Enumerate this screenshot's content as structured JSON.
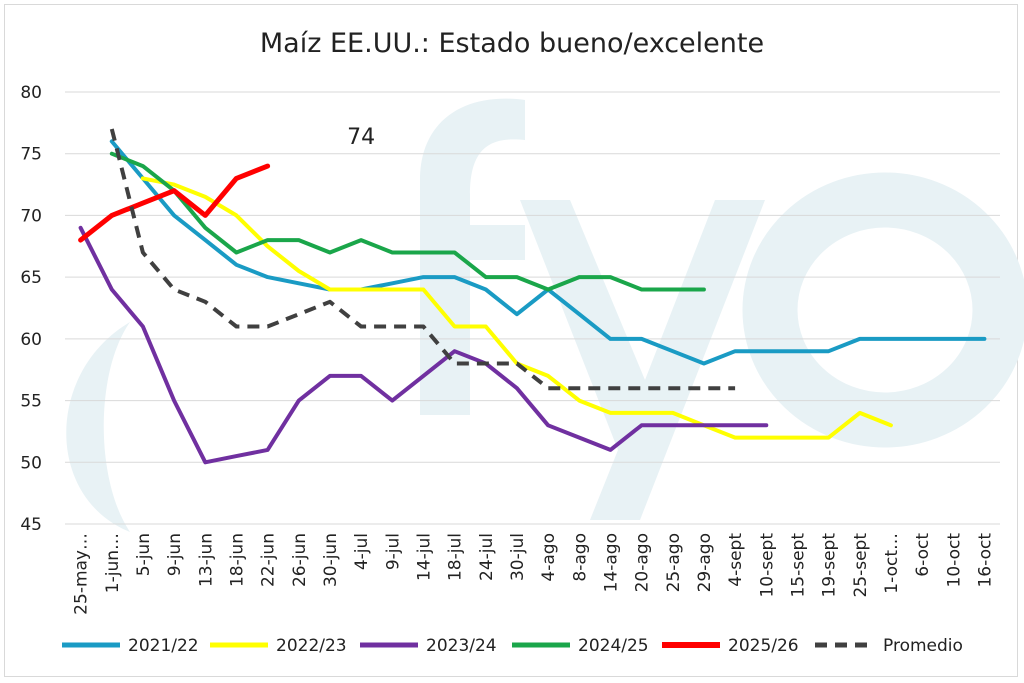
{
  "chart_data": {
    "type": "line",
    "title": "Maíz EE.UU.: Estado bueno/excelente",
    "xlabel": "",
    "ylabel": "",
    "ylim": [
      45,
      80
    ],
    "yticks": [
      45,
      50,
      55,
      60,
      65,
      70,
      75,
      80
    ],
    "grid": true,
    "legend_position": "bottom",
    "watermark": "fyo",
    "categories": [
      "25-may…",
      "1-jun…",
      "5-jun",
      "9-jun",
      "13-jun",
      "18-jun",
      "22-jun",
      "26-jun",
      "30-jun",
      "4-jul",
      "9-jul",
      "14-jul",
      "18-jul",
      "24-jul",
      "30-jul",
      "4-ago",
      "8-ago",
      "14-ago",
      "20-ago",
      "25-ago",
      "29-ago",
      "4-sept",
      "10-sept",
      "15-sept",
      "19-sept",
      "25-sept",
      "1-oct…",
      "6-oct",
      "10-oct",
      "16-oct"
    ],
    "series": [
      {
        "name": "2021/22",
        "color": "#1a9bc4",
        "dash": false,
        "values": [
          null,
          76,
          73,
          70,
          68,
          66,
          65,
          64.5,
          64,
          64,
          64.5,
          65,
          65,
          64,
          62,
          64,
          62,
          60,
          60,
          59,
          58,
          59,
          59,
          59,
          59,
          60,
          60,
          60,
          60,
          60
        ]
      },
      {
        "name": "2022/23",
        "color": "#ffff00",
        "dash": false,
        "values": [
          null,
          null,
          73,
          72.5,
          71.5,
          70,
          67.5,
          65.5,
          64,
          64,
          64,
          64,
          61,
          61,
          58,
          57,
          55,
          54,
          54,
          54,
          53,
          52,
          52,
          52,
          52,
          54,
          53,
          null,
          null,
          null
        ]
      },
      {
        "name": "2023/24",
        "color": "#7030a0",
        "dash": false,
        "values": [
          69,
          64,
          61,
          55,
          50,
          50.5,
          51,
          55,
          57,
          57,
          55,
          57,
          59,
          58,
          56,
          53,
          52,
          51,
          53,
          53,
          53,
          53,
          53,
          null,
          null,
          null,
          null,
          null,
          null,
          null
        ]
      },
      {
        "name": "2024/25",
        "color": "#1aa64a",
        "dash": false,
        "values": [
          null,
          75,
          74,
          72,
          69,
          67,
          68,
          68,
          67,
          68,
          67,
          67,
          67,
          65,
          65,
          64,
          65,
          65,
          64,
          64,
          64,
          null,
          null,
          null,
          null,
          null,
          null,
          null,
          null,
          null
        ]
      },
      {
        "name": "2025/26",
        "color": "#ff0000",
        "dash": false,
        "values": [
          68,
          70,
          71,
          72,
          70,
          73,
          74,
          null,
          null,
          null,
          null,
          null,
          null,
          null,
          null,
          null,
          null,
          null,
          null,
          null,
          null,
          null,
          null,
          null,
          null,
          null,
          null,
          null,
          null,
          null
        ]
      },
      {
        "name": "Promedio",
        "color": "#404040",
        "dash": true,
        "values": [
          null,
          77,
          67,
          64,
          63,
          61,
          61,
          62,
          63,
          61,
          61,
          61,
          58,
          58,
          58,
          56,
          56,
          56,
          56,
          56,
          56,
          56,
          null,
          null,
          null,
          null,
          null,
          null,
          null,
          null
        ]
      }
    ],
    "annotations": [
      {
        "text": "74",
        "series": "2025/26",
        "category": "4-jul",
        "value": 74
      }
    ]
  }
}
